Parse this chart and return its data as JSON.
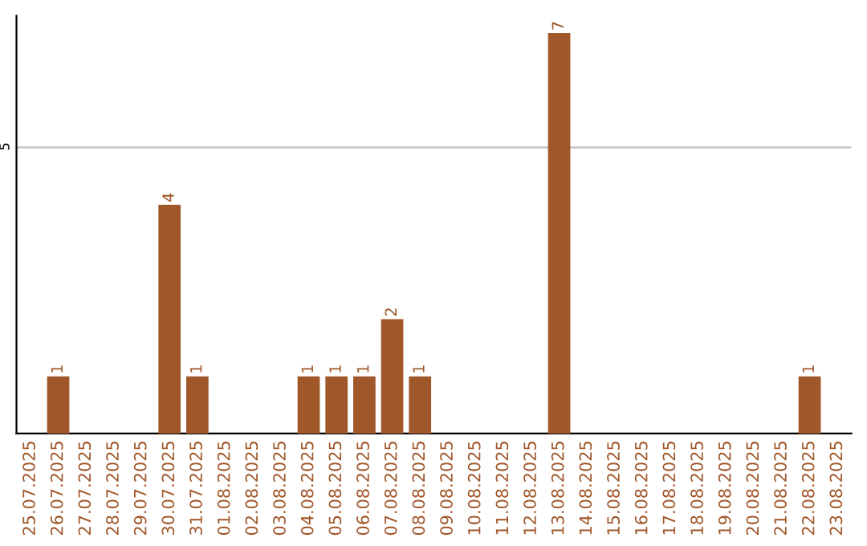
{
  "chart_data": {
    "type": "bar",
    "categories": [
      "25.07.2025",
      "26.07.2025",
      "27.07.2025",
      "28.07.2025",
      "29.07.2025",
      "30.07.2025",
      "31.07.2025",
      "01.08.2025",
      "02.08.2025",
      "03.08.2025",
      "04.08.2025",
      "05.08.2025",
      "06.08.2025",
      "07.08.2025",
      "08.08.2025",
      "09.08.2025",
      "10.08.2025",
      "11.08.2025",
      "12.08.2025",
      "13.08.2025",
      "14.08.2025",
      "15.08.2025",
      "16.08.2025",
      "17.08.2025",
      "18.08.2025",
      "19.08.2025",
      "20.08.2025",
      "21.08.2025",
      "22.08.2025",
      "23.08.2025"
    ],
    "values": [
      0,
      1,
      0,
      0,
      0,
      4,
      1,
      0,
      0,
      0,
      1,
      1,
      1,
      2,
      1,
      0,
      0,
      0,
      0,
      7,
      0,
      0,
      0,
      0,
      0,
      0,
      0,
      0,
      1,
      0
    ],
    "value_labels": [
      null,
      "1",
      null,
      null,
      null,
      "4",
      "1",
      null,
      null,
      null,
      "1",
      "1",
      "1",
      "2",
      "1",
      null,
      null,
      null,
      null,
      "7",
      null,
      null,
      null,
      null,
      null,
      null,
      null,
      null,
      "1",
      null
    ],
    "color": "#a0572a",
    "ylim": [
      0,
      7.3
    ],
    "yticks": [
      5
    ],
    "grid": "y",
    "legend": false
  }
}
